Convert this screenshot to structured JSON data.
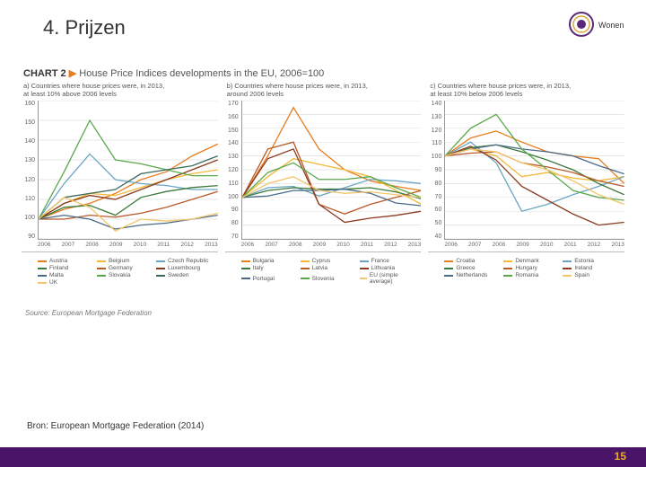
{
  "slide": {
    "title": "4. Prijzen",
    "citation": "Bron: European Mortgage Federation (2014)",
    "page_number": "15",
    "footer_color": "#4a1568",
    "page_num_color": "#e8a935"
  },
  "logo": {
    "label": "Wonen",
    "ring_color": "#5a2a7a",
    "accent_color": "#d8a93a"
  },
  "chart": {
    "heading_prefix": "CHART 2",
    "heading_rest": "House Price Indices developments in the EU, 2006=100",
    "source": "Source: European Mortgage Federation",
    "x_categories": [
      "2006",
      "2007",
      "2008",
      "2009",
      "2010",
      "2011",
      "2012",
      "2013"
    ],
    "grid_color": "#d0d0d0",
    "axis_color": "#999999",
    "text_color": "#555555",
    "line_width": 1.3,
    "panels": [
      {
        "title_l1": "a) Countries where house prices were, in 2013,",
        "title_l2": "at least 10% above 2006 levels",
        "ylim": [
          90,
          160
        ],
        "ytick_step": 10,
        "series": [
          {
            "name": "Austria",
            "color": "#e87d1e",
            "values": [
              100,
              105,
              108,
              113,
              120,
              124,
              132,
              138
            ]
          },
          {
            "name": "Belgium",
            "color": "#f2b838",
            "values": [
              100,
              108,
              113,
              112,
              116,
              120,
              123,
              125
            ]
          },
          {
            "name": "Czech Republic",
            "color": "#6aa6c4",
            "values": [
              100,
              118,
              133,
              120,
              118,
              117,
              115,
              115
            ]
          },
          {
            "name": "Finland",
            "color": "#3a7a3a",
            "values": [
              100,
              106,
              107,
              102,
              111,
              114,
              116,
              117
            ]
          },
          {
            "name": "Germany",
            "color": "#b85a2a",
            "values": [
              100,
              100,
              102,
              101,
              103,
              106,
              110,
              114
            ]
          },
          {
            "name": "Luxembourg",
            "color": "#8a3a1e",
            "values": [
              100,
              108,
              112,
              110,
              115,
              120,
              125,
              130
            ]
          },
          {
            "name": "Malta",
            "color": "#4a6a8a",
            "values": [
              100,
              102,
              100,
              95,
              97,
              98,
              100,
              102
            ]
          },
          {
            "name": "Slovakia",
            "color": "#5aa84a",
            "values": [
              100,
              124,
              150,
              130,
              128,
              125,
              122,
              122
            ]
          },
          {
            "name": "Sweden",
            "color": "#3a6a5a",
            "values": [
              100,
              111,
              113,
              115,
              123,
              125,
              127,
              132
            ]
          },
          {
            "name": "UK",
            "color": "#f4c56a",
            "values": [
              100,
              111,
              106,
              94,
              100,
              99,
              100,
              103
            ]
          }
        ]
      },
      {
        "title_l1": "b) Countries where house prices were, in 2013,",
        "title_l2": "around 2006 levels",
        "ylim": [
          70,
          170
        ],
        "ytick_step": 10,
        "series": [
          {
            "name": "Bulgaria",
            "color": "#e87d1e",
            "values": [
              100,
              130,
              165,
              135,
              120,
              112,
              108,
              105
            ]
          },
          {
            "name": "Cyprus",
            "color": "#f2b838",
            "values": [
              100,
              115,
              128,
              124,
              120,
              115,
              105,
              95
            ]
          },
          {
            "name": "France",
            "color": "#6aa6c4",
            "values": [
              100,
              107,
              108,
              101,
              107,
              113,
              112,
              110
            ]
          },
          {
            "name": "Italy",
            "color": "#3a7a3a",
            "values": [
              100,
              105,
              107,
              106,
              106,
              107,
              104,
              99
            ]
          },
          {
            "name": "Latvia",
            "color": "#b85a2a",
            "values": [
              100,
              135,
              140,
              95,
              88,
              95,
              100,
              105
            ]
          },
          {
            "name": "Lithuania",
            "color": "#8a3a1e",
            "values": [
              100,
              128,
              135,
              95,
              82,
              85,
              87,
              90
            ]
          },
          {
            "name": "Portugal",
            "color": "#4a6a8a",
            "values": [
              100,
              101,
              105,
              105,
              106,
              103,
              96,
              94
            ]
          },
          {
            "name": "Slovenia",
            "color": "#5aa84a",
            "values": [
              100,
              118,
              125,
              113,
              113,
              115,
              107,
              100
            ]
          },
          {
            "name": "EU (simple average)",
            "color": "#f4c56a",
            "values": [
              100,
              110,
              115,
              105,
              103,
              104,
              102,
              100
            ]
          }
        ]
      },
      {
        "title_l1": "c) Countries where house prices were, in 2013,",
        "title_l2": "at least 10% below 2006 levels",
        "ylim": [
          40,
          140
        ],
        "ytick_step": 10,
        "series": [
          {
            "name": "Croatia",
            "color": "#e87d1e",
            "values": [
              100,
              113,
              118,
              110,
              103,
              100,
              98,
              80
            ]
          },
          {
            "name": "Denmark",
            "color": "#f2b838",
            "values": [
              100,
              105,
              100,
              85,
              88,
              84,
              82,
              85
            ]
          },
          {
            "name": "Estonia",
            "color": "#6aa6c4",
            "values": [
              100,
              110,
              95,
              60,
              65,
              72,
              78,
              85
            ]
          },
          {
            "name": "Greece",
            "color": "#3a7a3a",
            "values": [
              100,
              106,
              108,
              103,
              97,
              90,
              80,
              72
            ]
          },
          {
            "name": "Hungary",
            "color": "#b85a2a",
            "values": [
              100,
              102,
              103,
              95,
              92,
              88,
              82,
              78
            ]
          },
          {
            "name": "Ireland",
            "color": "#8a3a1e",
            "values": [
              100,
              107,
              97,
              78,
              68,
              58,
              50,
              52
            ]
          },
          {
            "name": "Netherlands",
            "color": "#4a6a8a",
            "values": [
              100,
              105,
              108,
              105,
              103,
              100,
              93,
              87
            ]
          },
          {
            "name": "Romania",
            "color": "#5aa84a",
            "values": [
              100,
              120,
              130,
              105,
              90,
              75,
              70,
              68
            ]
          },
          {
            "name": "Spain",
            "color": "#f4c56a",
            "values": [
              100,
              105,
              103,
              95,
              90,
              82,
              72,
              65
            ]
          }
        ]
      }
    ]
  }
}
